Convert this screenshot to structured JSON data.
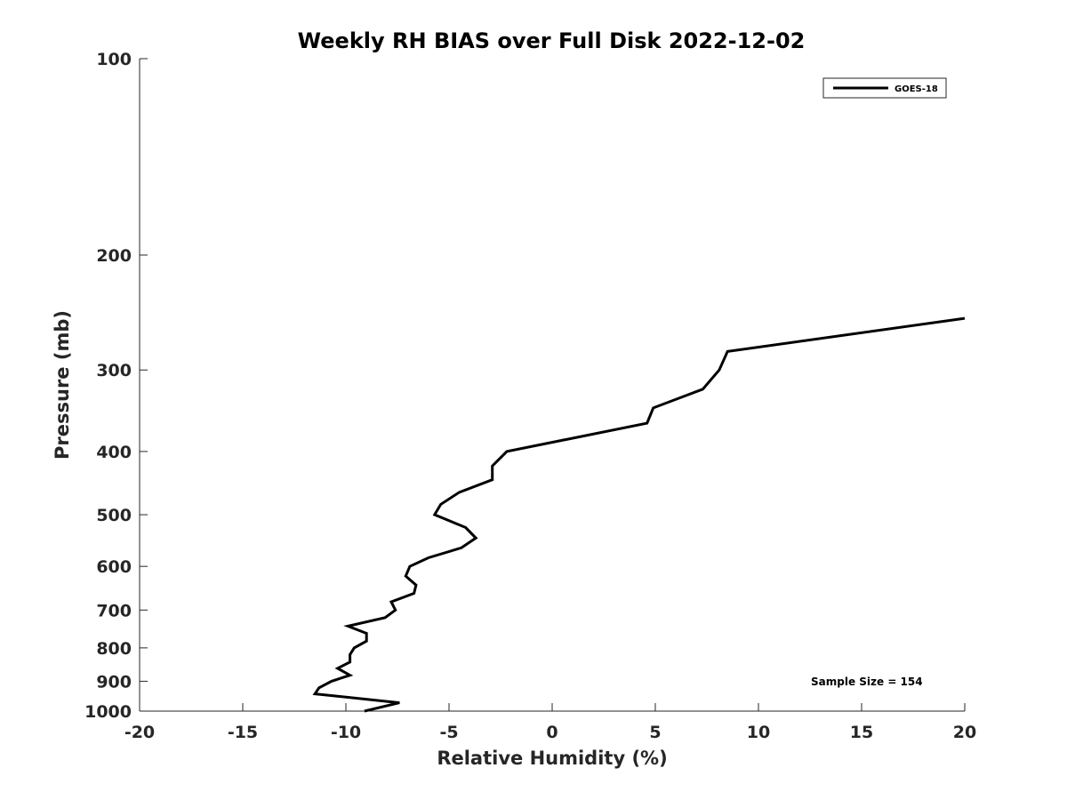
{
  "chart_data": {
    "type": "line",
    "title": "Weekly RH BIAS over Full Disk 2022-12-02",
    "xlabel": "Relative Humidity (%)",
    "ylabel": "Pressure (mb)",
    "xlim": [
      -20,
      20
    ],
    "ylim": [
      100,
      1000
    ],
    "y_scale": "log",
    "y_reversed": true,
    "grid": false,
    "legend_position": "top-right",
    "x_ticks": [
      "-20",
      "-15",
      "-10",
      "-5",
      "0",
      "5",
      "10",
      "15",
      "20"
    ],
    "y_ticks": [
      "100",
      "200",
      "300",
      "400",
      "500",
      "600",
      "700",
      "800",
      "900",
      "1000"
    ],
    "series": [
      {
        "name": "GOES-18",
        "color": "#000000",
        "points": [
          [
            20.0,
            250
          ],
          [
            8.5,
            281
          ],
          [
            8.1,
            300
          ],
          [
            7.3,
            321
          ],
          [
            4.9,
            343
          ],
          [
            4.6,
            362
          ],
          [
            -2.2,
            400
          ],
          [
            -2.9,
            421
          ],
          [
            -2.9,
            442
          ],
          [
            -4.5,
            462
          ],
          [
            -5.4,
            482
          ],
          [
            -5.7,
            500
          ],
          [
            -4.2,
            523
          ],
          [
            -3.7,
            543
          ],
          [
            -4.4,
            562
          ],
          [
            -6.0,
            582
          ],
          [
            -6.9,
            600
          ],
          [
            -7.1,
            621
          ],
          [
            -6.6,
            641
          ],
          [
            -6.7,
            660
          ],
          [
            -7.8,
            680
          ],
          [
            -7.6,
            700
          ],
          [
            -8.1,
            719
          ],
          [
            -9.9,
            741
          ],
          [
            -9.0,
            760
          ],
          [
            -9.0,
            781
          ],
          [
            -9.6,
            800
          ],
          [
            -9.8,
            819
          ],
          [
            -9.8,
            841
          ],
          [
            -10.4,
            860
          ],
          [
            -9.8,
            881
          ],
          [
            -10.7,
            900
          ],
          [
            -11.3,
            921
          ],
          [
            -11.5,
            941
          ],
          [
            -7.4,
            971
          ],
          [
            -9.1,
            1000
          ]
        ]
      }
    ],
    "annotation": "Sample Size = 154"
  }
}
